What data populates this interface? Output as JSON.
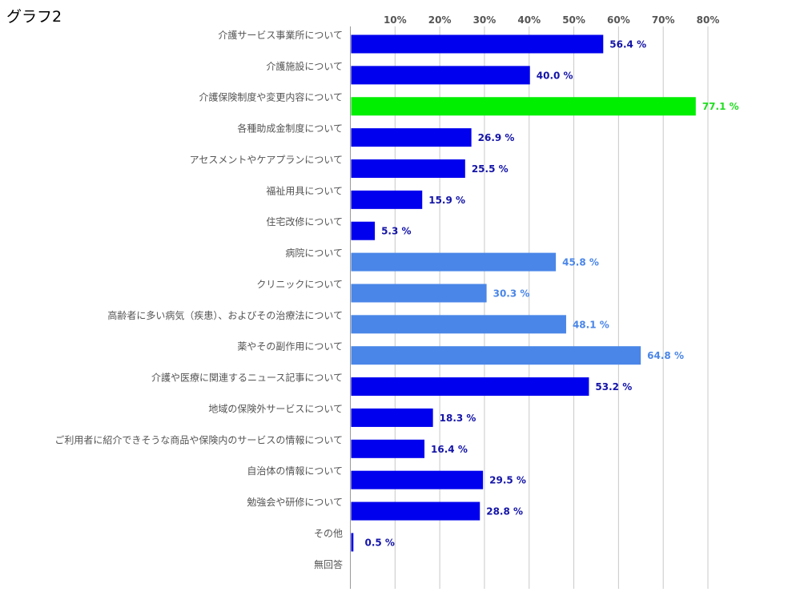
{
  "chart_data": {
    "type": "bar",
    "orientation": "horizontal",
    "title": "グラフ2",
    "xlim": [
      0,
      80
    ],
    "ticks": [
      10,
      20,
      30,
      40,
      50,
      60,
      70,
      80
    ],
    "tick_labels": [
      "10%",
      "20%",
      "30%",
      "40%",
      "50%",
      "60%",
      "70%",
      "80%"
    ],
    "tick_position": "top",
    "grid": true,
    "categories": [
      "介護サービス事業所について",
      "介護施設について",
      "介護保険制度や変更内容について",
      "各種助成金制度について",
      "アセスメントやケアプランについて",
      "福祉用具について",
      "住宅改修について",
      "病院について",
      "クリニックについて",
      "高齢者に多い病気（疾患）、およびその治療法について",
      "薬やその副作用について",
      "介護や医療に関連するニュース記事について",
      "地域の保険外サービスについて",
      "ご利用者に紹介できそうな商品や保険内のサービスの情報について",
      "自治体の情報について",
      "勉強会や研修について",
      "その他",
      "無回答"
    ],
    "values": [
      56.4,
      40.0,
      77.1,
      26.9,
      25.5,
      15.9,
      5.3,
      45.8,
      30.3,
      48.1,
      64.8,
      53.2,
      18.3,
      16.4,
      29.5,
      28.8,
      0.5,
      null
    ],
    "data_labels": [
      "56.4 %",
      "40.0 %",
      "77.1 %",
      "26.9 %",
      "25.5 %",
      "15.9 %",
      "5.3 %",
      "45.8 %",
      "30.3 %",
      "48.1 %",
      "64.8 %",
      "53.2 %",
      "18.3 %",
      "16.4 %",
      "29.5 %",
      "28.8 %",
      "0.5 %",
      ""
    ],
    "bar_colors": [
      "#0000ee",
      "#0000ee",
      "#00ee00",
      "#0000ee",
      "#0000ee",
      "#0000ee",
      "#0000ee",
      "#4a86e8",
      "#4a86e8",
      "#4a86e8",
      "#4a86e8",
      "#0000ee",
      "#0000ee",
      "#0000ee",
      "#0000ee",
      "#0000ee",
      "#0000ee",
      "#0000ee"
    ],
    "label_colors": [
      "#1414a8",
      "#1414a8",
      "#22dd22",
      "#1414a8",
      "#1414a8",
      "#1414a8",
      "#1414a8",
      "#4a86e8",
      "#4a86e8",
      "#4a86e8",
      "#4a86e8",
      "#1414a8",
      "#1414a8",
      "#1414a8",
      "#1414a8",
      "#1414a8",
      "#1414a8",
      "#1414a8"
    ]
  }
}
